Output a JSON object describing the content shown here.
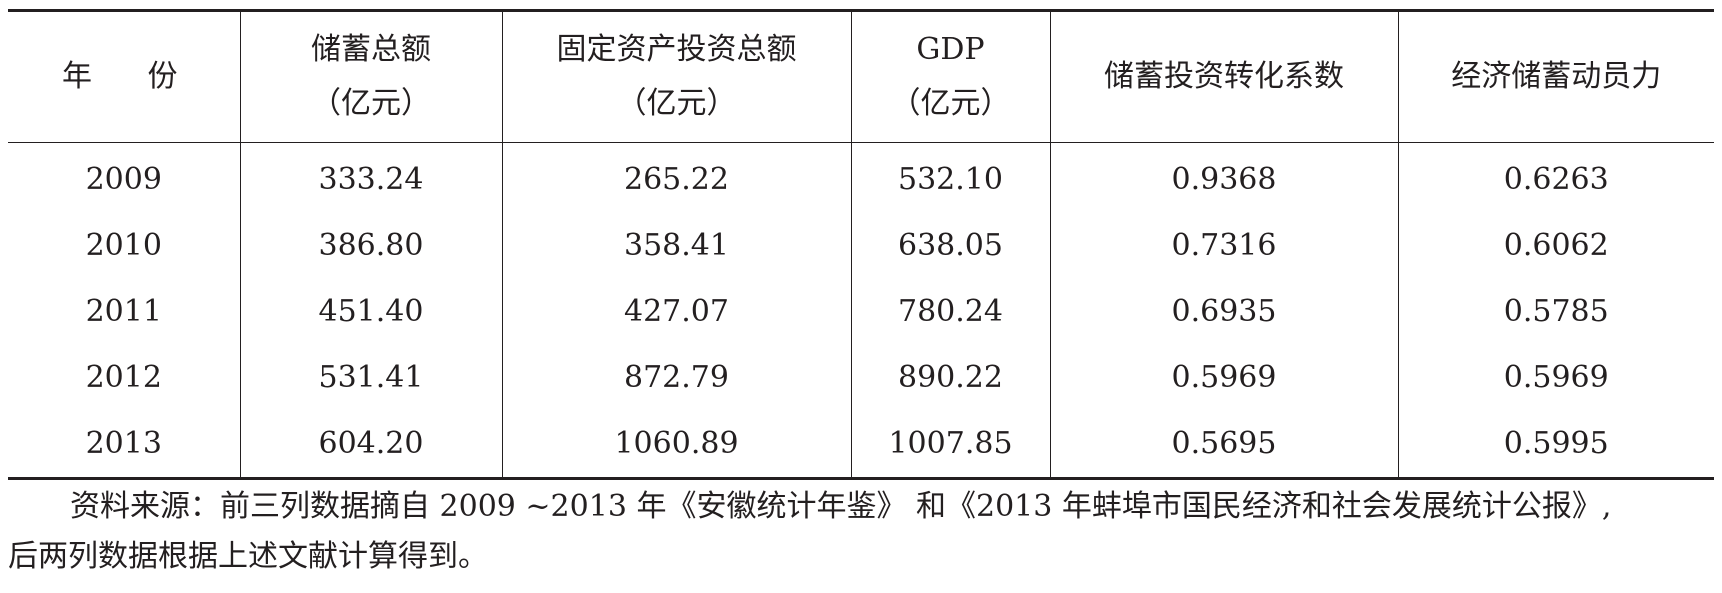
{
  "table": {
    "headers": [
      {
        "line1": "年",
        "line2": "份"
      },
      {
        "line1": "储蓄总额",
        "line2": "（亿元）"
      },
      {
        "line1": "固定资产投资总额",
        "line2": "（亿元）"
      },
      {
        "line1": "GDP",
        "line2": "（亿元）"
      },
      {
        "line1": "储蓄投资转化系数",
        "line2": ""
      },
      {
        "line1": "经济储蓄动员力",
        "line2": ""
      }
    ],
    "rows": [
      [
        "2009",
        "333.24",
        "265.22",
        "532.10",
        "0.9368",
        "0.6263"
      ],
      [
        "2010",
        "386.80",
        "358.41",
        "638.05",
        "0.7316",
        "0.6062"
      ],
      [
        "2011",
        "451.40",
        "427.07",
        "780.24",
        "0.6935",
        "0.5785"
      ],
      [
        "2012",
        "531.41",
        "872.79",
        "890.22",
        "0.5969",
        "0.5969"
      ],
      [
        "2013",
        "604.20",
        "1060.89",
        "1007.85",
        "0.5695",
        "0.5995"
      ]
    ]
  },
  "note": {
    "line1": "资料来源：前三列数据摘自 2009 ~2013 年《安徽统计年鉴》 和《2013 年蚌埠市国民经济和社会发展统计公报》,",
    "line2": "后两列数据根据上述文献计算得到。"
  }
}
